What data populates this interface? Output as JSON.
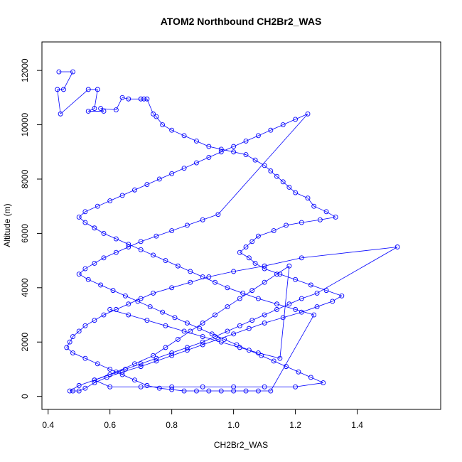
{
  "chart_data": {
    "type": "scatter",
    "title": "ATOM2 Northbound CH2Br2_WAS",
    "xlabel": "CH2Br2_WAS",
    "ylabel": "Altitude (m)",
    "xlim": [
      0.38,
      1.67
    ],
    "ylim": [
      -480,
      13050
    ],
    "xticks": [
      0.4,
      0.6,
      0.8,
      1.0,
      1.2,
      1.4
    ],
    "xtick_labels": [
      "0.4",
      "0.6",
      "0.8",
      "1.0",
      "1.2",
      "1.4"
    ],
    "yticks": [
      0,
      2000,
      4000,
      6000,
      8000,
      10000,
      12000
    ],
    "ytick_labels": [
      "0",
      "2000",
      "4000",
      "6000",
      "8000",
      "10000",
      "12000"
    ],
    "grid": false,
    "legend": false,
    "series_color": "#0000ff",
    "marker": "open-circle",
    "line": true,
    "series": [
      {
        "x": [
          0.435,
          0.48,
          0.45,
          0.43,
          0.44,
          0.53,
          0.56,
          0.55,
          0.53,
          0.58,
          0.57,
          0.62,
          0.64,
          0.66,
          0.7,
          0.71,
          0.72,
          0.74,
          0.75,
          0.77,
          0.8,
          0.84,
          0.88,
          0.92,
          0.96,
          1.0,
          1.04,
          1.07,
          1.1,
          1.12,
          1.14,
          1.16,
          1.18,
          1.2,
          1.24,
          1.26,
          1.3,
          1.33,
          1.28,
          1.22,
          1.17,
          1.13,
          1.08,
          1.06,
          1.04,
          1.02,
          1.05,
          1.07,
          1.1,
          1.15,
          1.2,
          1.25,
          1.3,
          1.35,
          1.32,
          1.27,
          1.22,
          1.16,
          1.1,
          1.05,
          1.0,
          0.95,
          0.9,
          0.85,
          0.8,
          0.75,
          0.7,
          0.64,
          0.59,
          0.55,
          0.52,
          0.5,
          0.48,
          0.47,
          0.5,
          0.55,
          0.6,
          0.65,
          0.7,
          0.75,
          0.8,
          0.85,
          0.9,
          0.94,
          0.98,
          1.02,
          1.06,
          1.1,
          1.14,
          1.18,
          1.22,
          1.27,
          1.53,
          1.22,
          1.1,
          1.0,
          0.92,
          0.86,
          0.8,
          0.74,
          0.7,
          0.66,
          0.62,
          0.58,
          0.55,
          0.52,
          0.5,
          0.48,
          0.47,
          0.46,
          0.48,
          0.52,
          0.56,
          0.6,
          0.64,
          0.68,
          0.72,
          0.76,
          0.8,
          0.84,
          0.88,
          0.92,
          0.96,
          1.0,
          1.04,
          1.08,
          1.12,
          1.26,
          1.2,
          1.14,
          1.08,
          1.03,
          0.98,
          0.94,
          0.9,
          0.86,
          0.82,
          0.78,
          0.74,
          0.7,
          0.66,
          0.62,
          0.58,
          0.55,
          0.52,
          0.5,
          0.52,
          0.56,
          0.6,
          0.64,
          0.68,
          0.72,
          0.76,
          0.8,
          0.84,
          0.88,
          0.92,
          0.96,
          1.0,
          1.04,
          1.08,
          1.12,
          1.16,
          1.2,
          1.24,
          0.95,
          0.9,
          0.85,
          0.8,
          0.75,
          0.7,
          0.66,
          0.62,
          0.58,
          0.55,
          0.52,
          0.5,
          0.53,
          0.57,
          0.61,
          0.65,
          0.69,
          0.73,
          0.77,
          0.81,
          0.85,
          0.89,
          0.93,
          0.97,
          1.01,
          1.05,
          1.09,
          1.13,
          1.17,
          1.21,
          1.25,
          1.29,
          1.2,
          1.1,
          1.0,
          0.9,
          0.8,
          0.7,
          0.6,
          0.55,
          0.62,
          0.68,
          0.74,
          0.78,
          0.82,
          0.86,
          0.9,
          0.94,
          0.98,
          1.02,
          1.06,
          1.1,
          1.14,
          1.18,
          1.15,
          1.08,
          1.02,
          0.96,
          0.9,
          0.84,
          0.78,
          0.72,
          0.66,
          0.6
        ],
        "y": [
          11950,
          11950,
          11300,
          11300,
          10400,
          11300,
          11300,
          10600,
          10500,
          10500,
          10600,
          10550,
          11000,
          10950,
          10950,
          10950,
          10950,
          10400,
          10300,
          10000,
          9800,
          9600,
          9400,
          9200,
          9100,
          9000,
          8900,
          8700,
          8500,
          8300,
          8100,
          7900,
          7700,
          7500,
          7300,
          7000,
          6800,
          6600,
          6500,
          6400,
          6300,
          6100,
          5900,
          5700,
          5500,
          5300,
          5100,
          4900,
          4700,
          4500,
          4300,
          4100,
          3900,
          3700,
          3500,
          3300,
          3100,
          2900,
          2700,
          2500,
          2300,
          2100,
          1900,
          1700,
          1500,
          1300,
          1100,
          900,
          700,
          500,
          300,
          200,
          200,
          200,
          400,
          600,
          800,
          1000,
          1200,
          1400,
          1600,
          1800,
          2000,
          2200,
          2400,
          2600,
          2800,
          3000,
          3200,
          3400,
          3600,
          3800,
          5500,
          5100,
          4800,
          4600,
          4400,
          4200,
          4000,
          3800,
          3600,
          3400,
          3200,
          3000,
          2800,
          2600,
          2400,
          2200,
          2000,
          1800,
          1600,
          1400,
          1200,
          1000,
          800,
          600,
          400,
          300,
          250,
          200,
          200,
          200,
          200,
          200,
          200,
          200,
          200,
          3000,
          3200,
          3400,
          3600,
          3800,
          4000,
          4200,
          4400,
          4600,
          4800,
          5000,
          5200,
          5400,
          5600,
          5800,
          6000,
          6200,
          6400,
          6600,
          6800,
          7000,
          7200,
          7400,
          7600,
          7800,
          8000,
          8200,
          8400,
          8600,
          8800,
          9000,
          9200,
          9400,
          9600,
          9800,
          10000,
          10200,
          10400,
          6700,
          6500,
          6300,
          6100,
          5900,
          5700,
          5500,
          5300,
          5100,
          4900,
          4700,
          4500,
          4300,
          4100,
          3900,
          3700,
          3500,
          3300,
          3100,
          2900,
          2700,
          2500,
          2300,
          2100,
          1900,
          1700,
          1500,
          1300,
          1100,
          900,
          700,
          500,
          350,
          350,
          350,
          350,
          350,
          350,
          350,
          600,
          900,
          1200,
          1500,
          1800,
          2100,
          2400,
          2700,
          3000,
          3300,
          3600,
          3900,
          4200,
          4500,
          4800,
          1400,
          1600,
          1800,
          2000,
          2200,
          2400,
          2600,
          2800,
          3000,
          3200
        ]
      }
    ]
  }
}
